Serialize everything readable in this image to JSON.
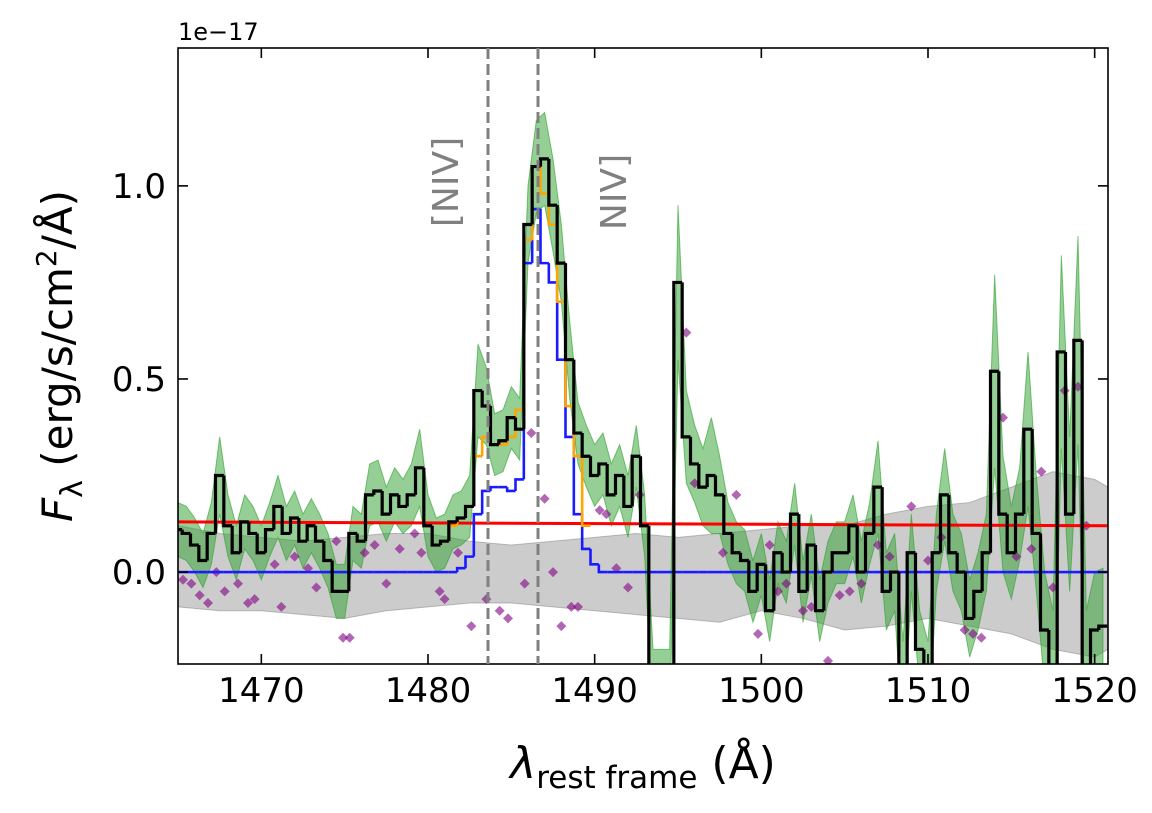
{
  "chart_data": {
    "type": "spectrum",
    "x_label": {
      "symbol": "λ",
      "subscript": "rest frame",
      "text": " (Å)"
    },
    "y_label": {
      "symbol": "F",
      "subscript": "λ",
      "text": " (erg/s/cm",
      "superscript": "2",
      "tail": "/Å)"
    },
    "y_offset_label": "1e−17",
    "xlim": [
      1465,
      1520.8
    ],
    "ylim": [
      -0.238,
      1.357
    ],
    "xticks": [
      1470,
      1480,
      1490,
      1500,
      1510,
      1520
    ],
    "yticks": [
      {
        "value": 0,
        "label": "0.0"
      },
      0.5,
      {
        "value": 1,
        "label": "1.0"
      }
    ],
    "x": [
      1465,
      1465.5,
      1466,
      1466.5,
      1467,
      1467.5,
      1468,
      1468.5,
      1469,
      1469.5,
      1470,
      1470.5,
      1471,
      1471.5,
      1472,
      1472.5,
      1473,
      1473.5,
      1474,
      1474.5,
      1475,
      1475.5,
      1476,
      1476.5,
      1477,
      1477.5,
      1478,
      1478.5,
      1479,
      1479.5,
      1480,
      1480.5,
      1481,
      1481.5,
      1482,
      1482.5,
      1483,
      1483.5,
      1484,
      1484.5,
      1485,
      1485.5,
      1486,
      1486.5,
      1487,
      1487.5,
      1488,
      1488.5,
      1489,
      1489.5,
      1490,
      1490.5,
      1491,
      1491.5,
      1492,
      1492.5,
      1493,
      1493.5,
      1494,
      1494.5,
      1495,
      1495.5,
      1496,
      1496.5,
      1497,
      1497.5,
      1498,
      1498.5,
      1499,
      1499.5,
      1500,
      1500.5,
      1501,
      1501.5,
      1502,
      1502.5,
      1503,
      1503.5,
      1504,
      1504.5,
      1505,
      1505.5,
      1506,
      1506.5,
      1507,
      1507.5,
      1508,
      1508.5,
      1509,
      1509.5,
      1510,
      1510.5,
      1511,
      1511.5,
      1512,
      1512.5,
      1513,
      1513.5,
      1514,
      1514.5,
      1515,
      1515.5,
      1516,
      1516.5,
      1517,
      1517.5,
      1518,
      1518.5,
      1519,
      1519.5,
      1520,
      1520.5
    ],
    "series": [
      {
        "color": "#000000",
        "error_color": "#2ca02c",
        "values": [
          0.11,
          0.1,
          0.07,
          0.03,
          0.1,
          0.25,
          0.12,
          0.05,
          0.13,
          0.1,
          0.05,
          0.11,
          0.17,
          0.1,
          0.14,
          0.08,
          0.12,
          0.08,
          0.03,
          -0.05,
          -0.05,
          0.1,
          0.08,
          0.2,
          0.21,
          0.15,
          0.2,
          0.17,
          0.2,
          0.27,
          0.12,
          0.07,
          0.08,
          0.13,
          0.14,
          0.17,
          0.47,
          0.43,
          0.33,
          0.34,
          0.4,
          0.37,
          0.9,
          1.05,
          1.07,
          0.95,
          0.8,
          0.55,
          0.36,
          0.3,
          0.25,
          0.28,
          0.2,
          0.25,
          0.17,
          0.3,
          0.12,
          -0.3,
          -0.3,
          -0.3,
          0.75,
          0.35,
          0.28,
          0.22,
          0.25,
          0.2,
          0.1,
          0.05,
          0.03,
          -0.05,
          0.02,
          -0.1,
          0.05,
          0.0,
          0.15,
          -0.05,
          0.07,
          -0.1,
          0.0,
          0.05,
          0.05,
          0.12,
          0.0,
          0.1,
          0.22,
          -0.05,
          0.0,
          -0.3,
          0.05,
          -0.2,
          -0.3,
          0.05,
          0.2,
          0.05,
          0.0,
          -0.12,
          -0.05,
          0.05,
          0.52,
          0.15,
          0.05,
          0.15,
          0.37,
          0.1,
          -0.15,
          -0.3,
          0.57,
          0.15,
          0.6,
          -0.3,
          -0.15,
          -0.14
        ],
        "error": [
          0.07,
          0.07,
          0.07,
          0.07,
          0.08,
          0.1,
          0.08,
          0.07,
          0.07,
          0.07,
          0.07,
          0.07,
          0.08,
          0.07,
          0.07,
          0.07,
          0.07,
          0.07,
          0.07,
          0.07,
          0.07,
          0.07,
          0.07,
          0.08,
          0.08,
          0.07,
          0.07,
          0.07,
          0.08,
          0.1,
          0.08,
          0.07,
          0.07,
          0.07,
          0.07,
          0.08,
          0.12,
          0.1,
          0.08,
          0.08,
          0.08,
          0.08,
          0.1,
          0.12,
          0.12,
          0.12,
          0.1,
          0.1,
          0.08,
          0.08,
          0.08,
          0.08,
          0.08,
          0.08,
          0.08,
          0.08,
          0.08,
          0.1,
          0.1,
          0.1,
          0.2,
          0.12,
          0.1,
          0.1,
          0.15,
          0.1,
          0.08,
          0.08,
          0.08,
          0.08,
          0.08,
          0.08,
          0.08,
          0.08,
          0.08,
          0.08,
          0.08,
          0.08,
          0.08,
          0.08,
          0.08,
          0.08,
          0.08,
          0.08,
          0.12,
          0.1,
          0.1,
          0.12,
          0.1,
          0.1,
          0.12,
          0.1,
          0.12,
          0.1,
          0.1,
          0.1,
          0.1,
          0.1,
          0.25,
          0.15,
          0.12,
          0.12,
          0.2,
          0.15,
          0.15,
          0.2,
          0.25,
          0.2,
          0.27,
          0.2,
          0.15,
          0.15
        ]
      },
      {
        "color": "#1a1aff",
        "values": [
          0,
          0,
          0,
          0,
          0,
          0,
          0,
          0,
          0,
          0,
          0,
          0,
          0,
          0,
          0,
          0,
          0,
          0,
          0,
          0,
          0,
          0,
          0,
          0,
          0,
          0,
          0,
          0,
          0,
          0,
          0,
          0,
          0,
          0,
          0.01,
          0.04,
          0.15,
          0.21,
          0.22,
          0.22,
          0.21,
          0.24,
          0.8,
          0.94,
          0.8,
          0.75,
          0.55,
          0.35,
          0.15,
          0.06,
          0.02,
          0,
          0,
          0,
          0,
          0,
          0,
          0,
          0,
          0,
          0,
          0,
          0,
          0,
          0,
          0,
          0,
          0,
          0,
          0,
          0,
          0,
          0,
          0,
          0,
          0,
          0,
          0,
          0,
          0,
          0,
          0,
          0,
          0,
          0,
          0,
          0,
          0,
          0,
          0,
          0,
          0,
          0,
          0,
          0,
          0,
          0,
          0,
          0,
          0,
          0,
          0,
          0,
          0,
          0,
          0,
          0,
          0,
          0,
          0,
          0,
          0
        ]
      },
      {
        "color": "#ffa500",
        "values": [
          null,
          null,
          null,
          null,
          null,
          null,
          null,
          null,
          null,
          null,
          null,
          null,
          null,
          null,
          null,
          null,
          null,
          null,
          null,
          null,
          null,
          null,
          null,
          null,
          null,
          null,
          null,
          null,
          null,
          null,
          null,
          null,
          null,
          0.12,
          0.14,
          0.17,
          0.3,
          0.35,
          0.33,
          0.33,
          0.35,
          0.42,
          0.86,
          1.05,
          0.98,
          0.9,
          0.7,
          0.43,
          0.3,
          0.12,
          null,
          null,
          null,
          null,
          null,
          null,
          null,
          null,
          null,
          null,
          null,
          null,
          null,
          null,
          null,
          null,
          null,
          null,
          null,
          null,
          null,
          null,
          null,
          null,
          null,
          null,
          null,
          null,
          null,
          null,
          null,
          null,
          null,
          null,
          null,
          null,
          null,
          null,
          null,
          null,
          null,
          null,
          null,
          null,
          null,
          null,
          null,
          null,
          null,
          null,
          null,
          null,
          null,
          null,
          null,
          null,
          null,
          null,
          null,
          null,
          null,
          null
        ]
      },
      {
        "color": "#ff0000",
        "style": "line",
        "x": [
          1465,
          1520.8
        ],
        "values": [
          0.13,
          0.12
        ]
      }
    ],
    "noise_band": {
      "color": "#808080",
      "x": [
        1465,
        1467.5,
        1470,
        1472.5,
        1475,
        1477.5,
        1480,
        1482.5,
        1485,
        1487.5,
        1490,
        1492.5,
        1495,
        1497.5,
        1500,
        1502.5,
        1505,
        1507.5,
        1510,
        1512.5,
        1515,
        1517.5,
        1520,
        1520.8
      ],
      "upper": [
        0.12,
        0.1,
        0.09,
        0.08,
        0.09,
        0.1,
        0.1,
        0.08,
        0.07,
        0.08,
        0.09,
        0.1,
        0.09,
        0.1,
        0.11,
        0.12,
        0.12,
        0.15,
        0.17,
        0.18,
        0.22,
        0.26,
        0.24,
        0.22
      ],
      "lower": [
        -0.09,
        -0.1,
        -0.1,
        -0.11,
        -0.12,
        -0.1,
        -0.09,
        -0.08,
        -0.08,
        -0.09,
        -0.1,
        -0.11,
        -0.12,
        -0.13,
        -0.1,
        -0.12,
        -0.15,
        -0.14,
        -0.12,
        -0.14,
        -0.16,
        -0.2,
        -0.22,
        -0.2
      ]
    },
    "points": {
      "color": "#800080",
      "x": [
        1465.3,
        1465.8,
        1466.3,
        1466.8,
        1467.3,
        1467.8,
        1468.6,
        1469.2,
        1469.6,
        1470.8,
        1471.2,
        1472.0,
        1472.8,
        1473.3,
        1474.5,
        1474.9,
        1475.3,
        1476.2,
        1476.8,
        1477.5,
        1478.3,
        1479.2,
        1479.6,
        1480.7,
        1481.0,
        1481.8,
        1482.6,
        1483.5,
        1484.3,
        1484.8,
        1485.8,
        1486.2,
        1487.0,
        1487.5,
        1488.0,
        1488.6,
        1489.0,
        1490.3,
        1490.7,
        1491.3,
        1492.0,
        1492.7,
        1495.5,
        1496.0,
        1497.7,
        1498.5,
        1499.8,
        1500.5,
        1501.0,
        1501.5,
        1502.5,
        1503.0,
        1504.0,
        1504.7,
        1505.3,
        1506.0,
        1507.0,
        1507.7,
        1509.0,
        1510.0,
        1510.8,
        1512.2,
        1512.7,
        1513.2,
        1514.5,
        1515.3,
        1516.2,
        1516.8,
        1517.5,
        1518.2,
        1519.0,
        1519.5
      ],
      "values": [
        -0.02,
        -0.03,
        -0.06,
        -0.08,
        0.0,
        -0.05,
        -0.03,
        -0.08,
        -0.07,
        0.02,
        -0.09,
        0.04,
        0.01,
        -0.04,
        0.08,
        -0.17,
        -0.17,
        0.05,
        0.07,
        -0.03,
        0.06,
        0.1,
        0.05,
        -0.05,
        -0.07,
        0.05,
        -0.14,
        -0.07,
        -0.1,
        -0.12,
        -0.03,
        0.36,
        0.19,
        0.0,
        -0.14,
        -0.09,
        -0.09,
        0.16,
        0.15,
        0.01,
        -0.04,
        0.2,
        0.62,
        0.23,
        0.05,
        0.2,
        -0.16,
        0.07,
        -0.05,
        -0.03,
        -0.1,
        -0.09,
        -0.23,
        -0.06,
        -0.05,
        -0.03,
        0.07,
        0.04,
        0.17,
        0.03,
        0.09,
        -0.15,
        -0.16,
        -0.17,
        0.4,
        0.04,
        0.06,
        0.26,
        -0.04,
        0.47,
        0.48,
        0.12
      ]
    },
    "vlines": [
      {
        "x": 1483.6,
        "label": "[NIV]",
        "color": "#808080"
      },
      {
        "x": 1486.6,
        "label": "NIV]",
        "color": "#808080"
      }
    ]
  }
}
